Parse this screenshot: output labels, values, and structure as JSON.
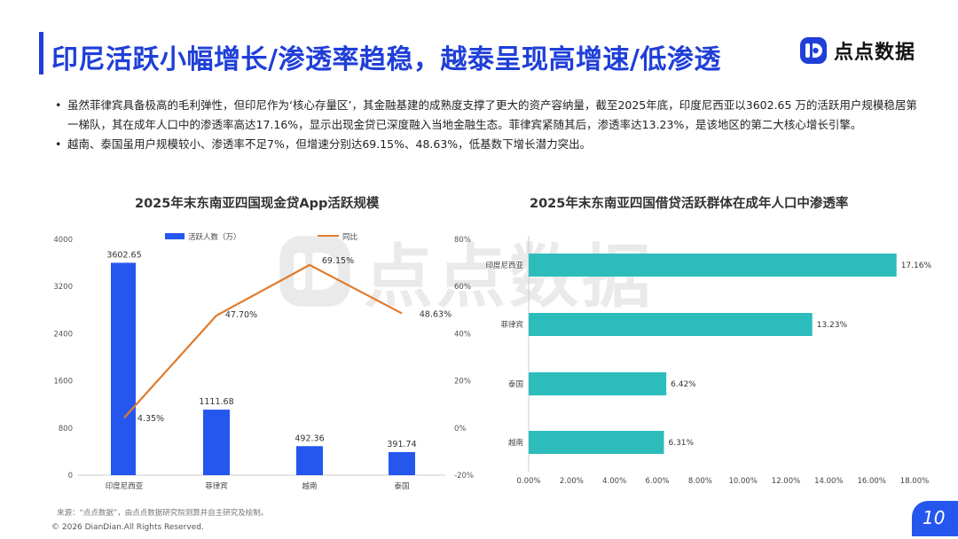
{
  "title": "印尼活跃小幅增长/渗透率趋稳，越泰呈现高增速/低渗透",
  "logo": {
    "text": "点点数据",
    "icon": "dd-logo-icon",
    "color": "#1f3fd8"
  },
  "bullets": [
    "虽然菲律宾具备极高的毛利弹性，但印尼作为‘核心存量区’，其金融基建的成熟度支撑了更大的资产容纳量，截至2025年底，印度尼西亚以3602.65 万的活跃用户规模稳居第一梯队，其在成年人口中的渗透率高达17.16%，显示出现金贷已深度融入当地金融生态。菲律宾紧随其后，渗透率达13.23%，是该地区的第二大核心增长引擎。",
    "越南、泰国虽用户规模较小、渗透率不足7%，但增速分别达69.15%、48.63%，低基数下增长潜力突出。"
  ],
  "watermark": "点点数据",
  "source": "来源：“点点数据”，由点点数据研究院测算并自主研究及绘制。",
  "copyright": "© 2026 DianDian.All Rights Reserved.",
  "page_number": "10",
  "colors": {
    "blue": "#2557ef",
    "orange": "#e07b2c",
    "teal": "#2dbcbc",
    "title_blue": "#1f3fd8"
  },
  "chart_data": [
    {
      "type": "bar",
      "title": "2025年末东南亚四国现金贷App活跃规模",
      "categories": [
        "印度尼西亚",
        "菲律宾",
        "越南",
        "泰国"
      ],
      "series": [
        {
          "name": "活跃人数（万）",
          "type": "bar",
          "axis": "left",
          "values": [
            3602.65,
            1111.68,
            492.36,
            391.74
          ],
          "labels": [
            "3602.65",
            "1111.68",
            "492.36",
            "391.74"
          ],
          "color": "#2557ef"
        },
        {
          "name": "同比",
          "type": "line",
          "axis": "right",
          "values": [
            4.35,
            47.7,
            69.15,
            48.63
          ],
          "labels": [
            "4.35%",
            "47.70%",
            "69.15%",
            "48.63%"
          ],
          "color": "#e07b2c"
        }
      ],
      "ylim_left": [
        0,
        4000
      ],
      "yticks_left": [
        "0",
        "800",
        "1600",
        "2400",
        "3200",
        "4000"
      ],
      "ylim_right": [
        -20,
        80
      ],
      "yticks_right": [
        "-20%",
        "0%",
        "20%",
        "40%",
        "60%",
        "80%"
      ],
      "grid": false,
      "legend": "top"
    },
    {
      "type": "bar",
      "orientation": "horizontal",
      "title": "2025年末东南亚四国借贷活跃群体在成年人口中渗透率",
      "categories": [
        "印度尼西亚",
        "菲律宾",
        "泰国",
        "越南"
      ],
      "values": [
        17.16,
        13.23,
        6.42,
        6.31
      ],
      "labels": [
        "17.16%",
        "13.23%",
        "6.42%",
        "6.31%"
      ],
      "xlim": [
        0,
        18
      ],
      "xticks": [
        "0.00%",
        "2.00%",
        "4.00%",
        "6.00%",
        "8.00%",
        "10.00%",
        "12.00%",
        "14.00%",
        "16.00%",
        "18.00%"
      ],
      "color": "#2dbcbc",
      "grid": false
    }
  ]
}
